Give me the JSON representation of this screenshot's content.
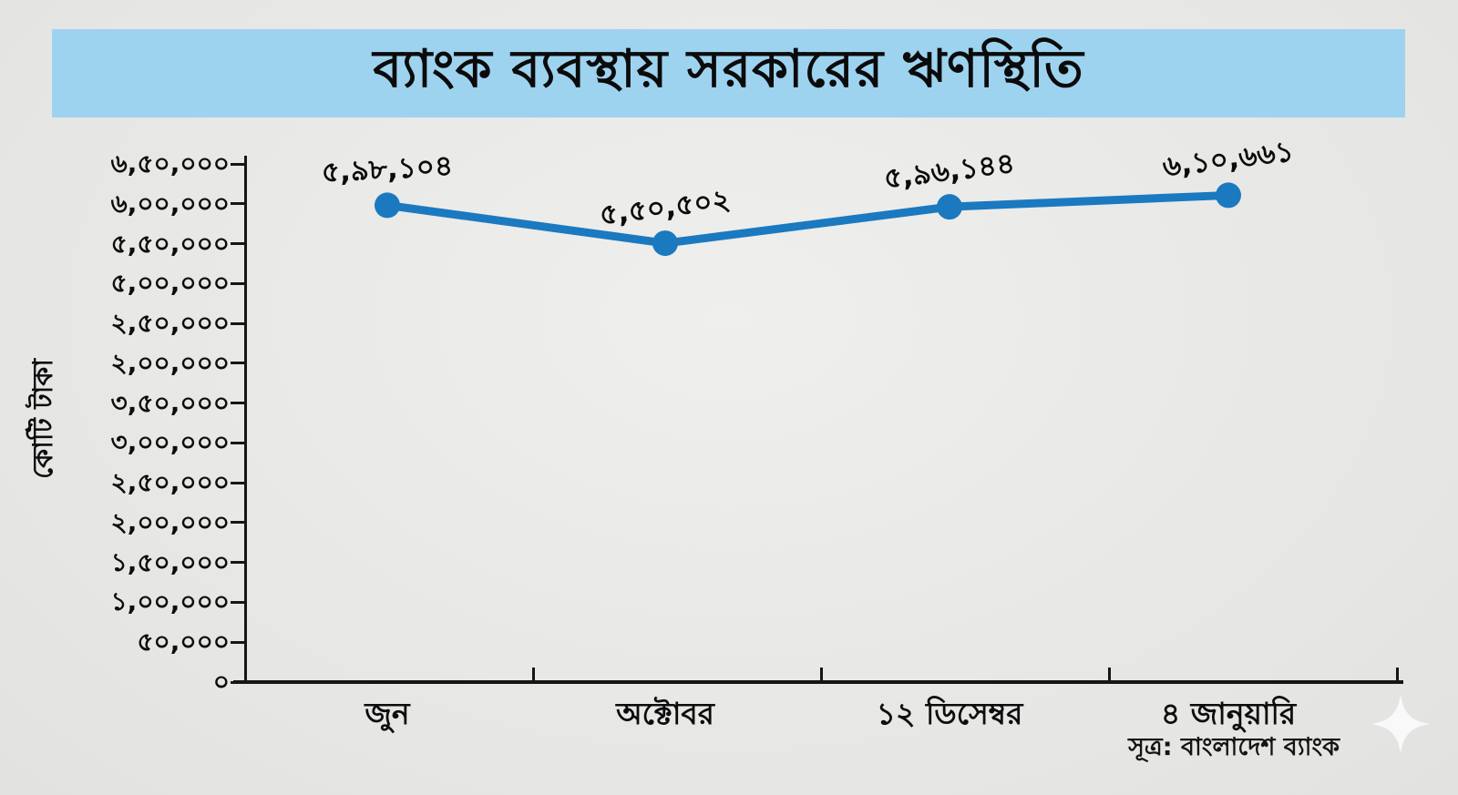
{
  "title": "ব্যাংক ব্যবস্থায় সরকারের ঋণস্থিতি",
  "source_note": "সূত্র: বাংলাদেশ ব্যাংক",
  "colors": {
    "title_band": "#9ed3f0",
    "line": "#1b79c0",
    "marker": "#1b79c0",
    "axis": "#161616",
    "background": "#e8e8e6"
  },
  "chart_data": {
    "type": "line",
    "title": "ব্যাংক ব্যবস্থায় সরকারের ঋণস্থিতি",
    "xlabel": "",
    "ylabel": "কোটি টাকা",
    "categories": [
      "জুন",
      "অক্টোবর",
      "১২ ডিসেম্বর",
      "৪ জানুয়ারি"
    ],
    "values": [
      598104,
      550502,
      596144,
      610661
    ],
    "point_labels": [
      "৫,৯৮,১০৪",
      "৫,৫০,৫০২",
      "৫,৯৬,১৪৪",
      "৬,১০,৬৬১"
    ],
    "ylim": [
      0,
      650000
    ],
    "y_tick_labels": [
      "৬,৫০,০০০",
      "৬,০০,০০০",
      "৫,৫০,০০০",
      "৫,০০,০০০",
      "২,৫০,০০০",
      "২,০০,০০০",
      "৩,৫০,০০০",
      "৩,০০,০০০",
      "২,৫০,০০০",
      "২,০০,০০০",
      "১,৫০,০০০",
      "১,০০,০০০",
      "৫০,০০০",
      "০"
    ],
    "grid": false,
    "legend_position": "none",
    "source": "সূত্র: বাংলাদেশ ব্যাংক"
  },
  "decor": {
    "sparkle_icon": "four-pointed-star"
  }
}
